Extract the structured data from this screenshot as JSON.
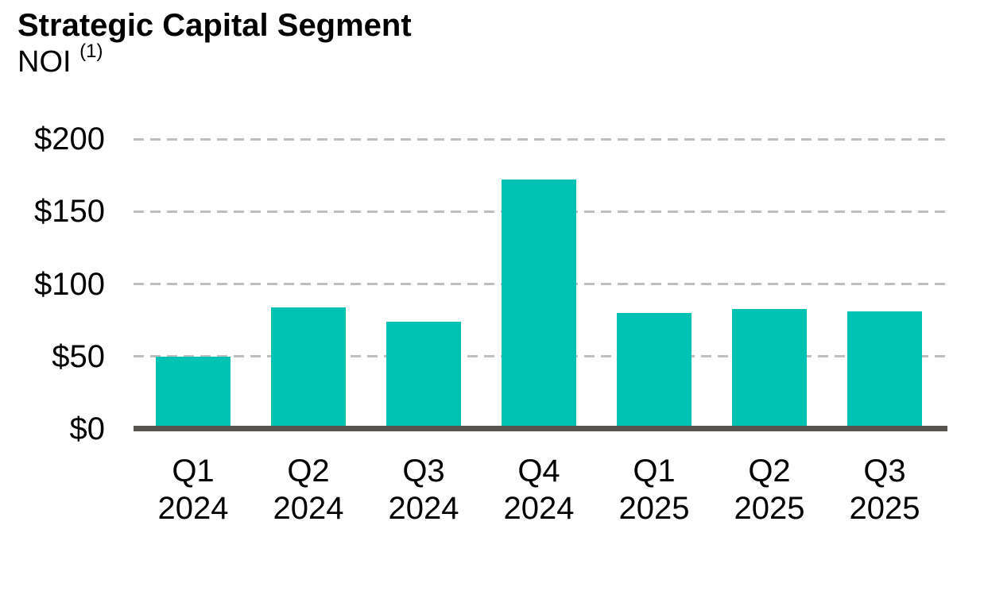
{
  "header": {
    "title": "Strategic Capital Segment",
    "subtitle": "NOI",
    "subtitle_superscript": "(1)"
  },
  "chart_data": {
    "type": "bar",
    "title": "Strategic Capital Segment",
    "subtitle": "NOI (1)",
    "xlabel": "",
    "ylabel": "",
    "categories": [
      "Q1 2024",
      "Q2 2024",
      "Q3 2024",
      "Q4 2024",
      "Q1 2025",
      "Q2 2025",
      "Q3 2025"
    ],
    "values": [
      50,
      84,
      74,
      172,
      80,
      83,
      81
    ],
    "ylim": [
      0,
      200
    ],
    "y_ticks": [
      {
        "value": 0,
        "label": "$0"
      },
      {
        "value": 50,
        "label": "$50"
      },
      {
        "value": 100,
        "label": "$100"
      },
      {
        "value": 150,
        "label": "$150"
      },
      {
        "value": 200,
        "label": "$200"
      }
    ],
    "grid": "horizontal-dashed",
    "legend": "none",
    "colors": {
      "bar": "#00C2B2",
      "axis_line": "#55544D",
      "gridline": "#BFBFBF",
      "text": "#000000",
      "background": "#FFFFFF"
    }
  }
}
